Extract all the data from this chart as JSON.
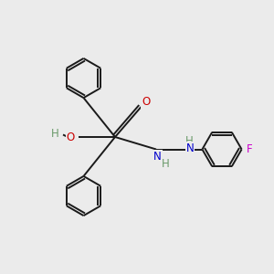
{
  "background_color": "#ebebeb",
  "bond_color": "#1a1a1a",
  "atom_colors": {
    "O": "#cc0000",
    "N": "#0000cc",
    "F": "#cc00cc",
    "H": "#6a9a6a",
    "C": "#1a1a1a"
  },
  "figsize": [
    3.0,
    3.0
  ],
  "dpi": 100,
  "lw": 1.4,
  "ring_r": 0.72,
  "fontsize": 8.5
}
